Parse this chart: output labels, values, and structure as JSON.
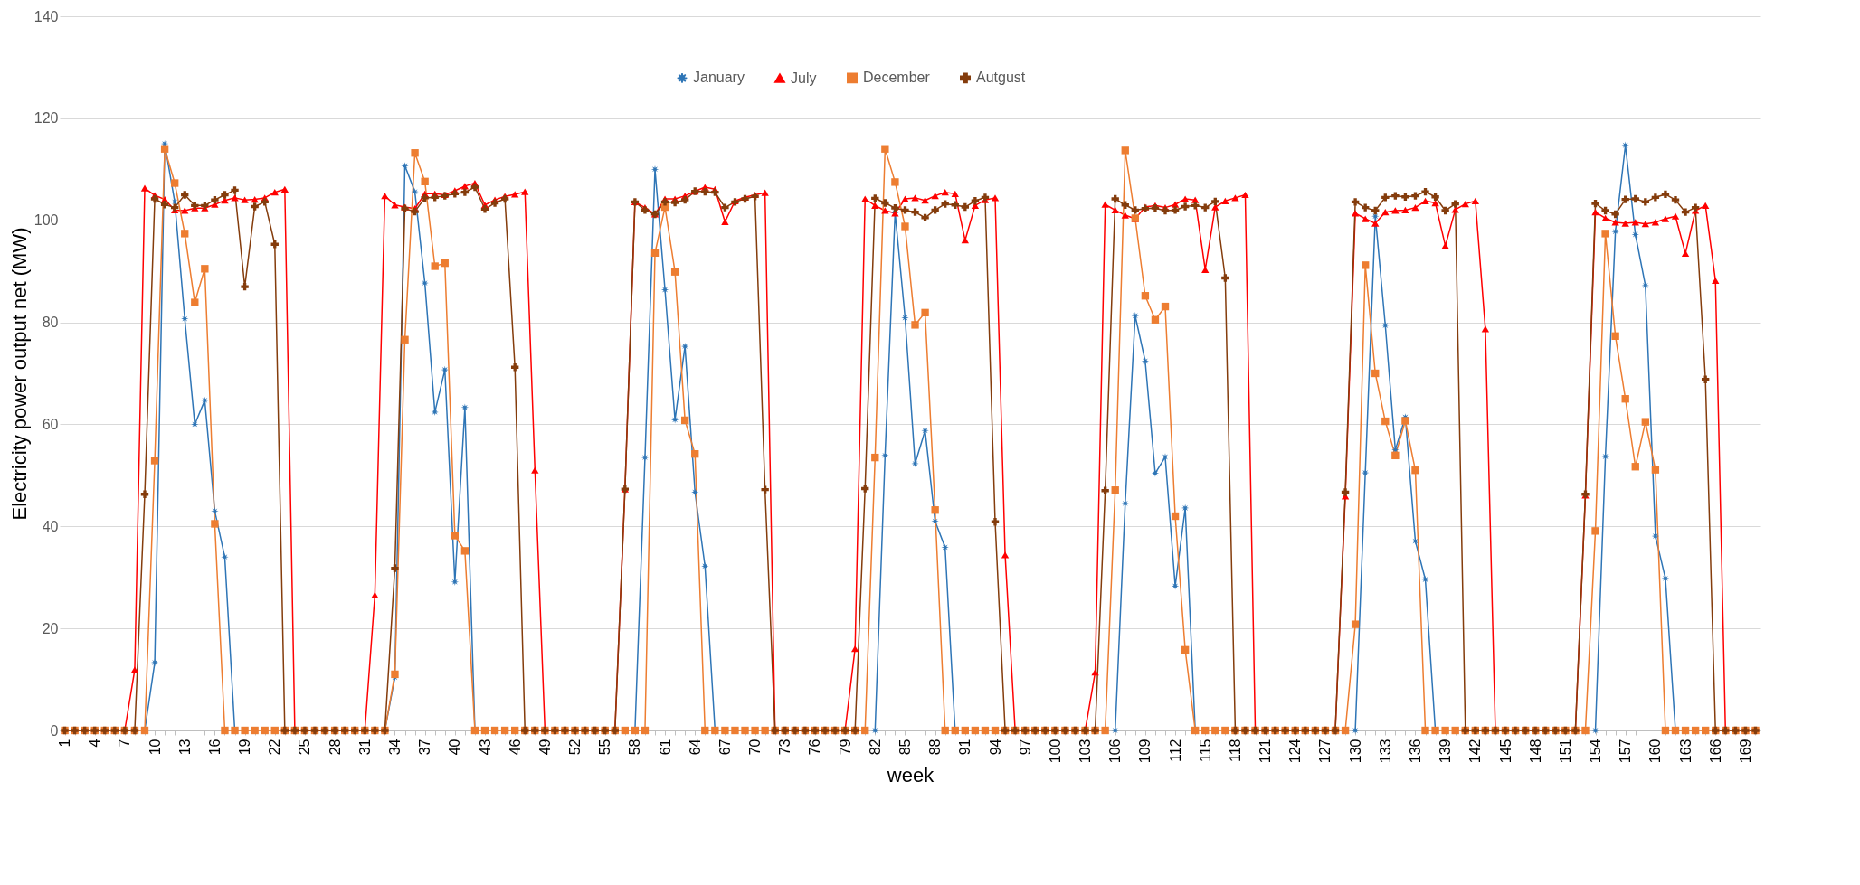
{
  "chart_data": {
    "type": "line",
    "xlabel": "week",
    "ylabel": "Electricity power output net (MW)",
    "categories": [
      "1",
      null,
      null,
      "4",
      null,
      null,
      "7",
      null,
      null,
      "10",
      null,
      null,
      "13",
      null,
      null,
      "16",
      null,
      null,
      "19",
      null,
      null,
      "22",
      null,
      null,
      "25",
      null,
      null,
      "28",
      null,
      null,
      "31",
      null,
      null,
      "34",
      null,
      null,
      "37",
      null,
      null,
      "40",
      null,
      null,
      "43",
      null,
      null,
      "46",
      null,
      null,
      "49",
      null,
      null,
      "52",
      null,
      null,
      "55",
      null,
      null,
      "58",
      null,
      null,
      "61",
      null,
      null,
      "64",
      null,
      null,
      "67",
      null,
      null,
      "70",
      null,
      null,
      "73",
      null,
      null,
      "76",
      null,
      null,
      "79",
      null,
      null,
      "82",
      null,
      null,
      "85",
      null,
      null,
      "88",
      null,
      null,
      "91",
      null,
      null,
      "94",
      null,
      null,
      "97",
      null,
      null,
      "100",
      null,
      null,
      "103",
      null,
      null,
      "106",
      null,
      null,
      "109",
      null,
      null,
      "112",
      null,
      null,
      "115",
      null,
      null,
      "118",
      null,
      null,
      "121",
      null,
      null,
      "124",
      null,
      null,
      "127",
      null,
      null,
      "130",
      null,
      null,
      "133",
      null,
      null,
      "136",
      null,
      null,
      "139",
      null,
      null,
      "142",
      null,
      null,
      "145",
      null,
      null,
      "148",
      null,
      null,
      "151",
      null,
      null,
      "154",
      null,
      null,
      "157",
      null,
      null,
      "160",
      null,
      null,
      "163",
      null,
      null,
      "166",
      null,
      null,
      "169",
      null
    ],
    "ylim": [
      0,
      140
    ],
    "yticks": [
      0,
      20,
      40,
      60,
      80,
      100,
      120,
      140
    ],
    "grid": "y",
    "legend": "top",
    "series": [
      {
        "name": "January",
        "color": "#2e75b6",
        "marker": "star",
        "values": [
          null,
          null,
          null,
          null,
          null,
          null,
          null,
          null,
          0,
          13.3,
          115,
          103.6,
          80.7,
          60,
          64.7,
          43,
          34,
          0,
          null,
          null,
          null,
          null,
          null,
          null,
          null,
          null,
          null,
          null,
          null,
          null,
          null,
          null,
          0,
          10.4,
          110.7,
          105.6,
          87.7,
          62.4,
          70.7,
          29.1,
          63.3,
          0,
          null,
          null,
          null,
          null,
          null,
          null,
          null,
          null,
          null,
          null,
          null,
          null,
          null,
          null,
          null,
          0,
          53.5,
          110,
          86.4,
          60.9,
          75.3,
          46.7,
          32.2,
          0,
          null,
          null,
          null,
          null,
          null,
          null,
          null,
          null,
          null,
          null,
          null,
          null,
          null,
          null,
          null,
          0,
          53.9,
          101.5,
          80.9,
          52.3,
          58.8,
          41,
          35.9,
          0,
          null,
          null,
          null,
          null,
          null,
          null,
          null,
          null,
          null,
          null,
          null,
          null,
          null,
          null,
          null,
          0,
          44.5,
          81.3,
          72.4,
          50.4,
          53.6,
          28.3,
          43.6,
          0,
          null,
          null,
          null,
          null,
          null,
          null,
          null,
          null,
          null,
          null,
          null,
          null,
          null,
          null,
          null,
          0,
          50.5,
          100.8,
          79.4,
          55,
          61.4,
          37.1,
          29.6,
          0,
          null,
          null,
          null,
          null,
          null,
          null,
          null,
          null,
          null,
          null,
          null,
          null,
          null,
          null,
          null,
          0,
          53.7,
          97.8,
          114.7,
          97.2,
          87.2,
          38.1,
          29.8,
          0,
          null,
          null,
          null,
          null,
          null,
          null,
          null,
          null
        ]
      },
      {
        "name": "July",
        "color": "#ff0000",
        "marker": "triangle",
        "values": [
          0,
          0,
          0,
          0,
          0,
          0,
          0,
          11.9,
          106.3,
          104.9,
          104.1,
          102,
          101.9,
          102.4,
          102.4,
          103.1,
          103.9,
          104.4,
          104,
          104.1,
          104.4,
          105.5,
          106.1,
          0,
          0,
          0,
          0,
          0,
          0,
          0,
          0,
          26.5,
          104.8,
          103,
          102.6,
          102.3,
          105.2,
          105.2,
          105,
          105.8,
          106.7,
          107.3,
          103,
          104,
          104.7,
          105.1,
          105.6,
          51,
          0,
          0,
          0,
          0,
          0,
          0,
          0,
          0,
          47.3,
          103.6,
          102.5,
          101.2,
          104.2,
          104.2,
          104.8,
          105.7,
          106.5,
          106.1,
          99.7,
          103.8,
          104.5,
          105,
          105.4,
          0,
          0,
          0,
          0,
          0,
          0,
          0,
          0,
          16,
          104.2,
          102.9,
          101.9,
          101.4,
          104.2,
          104.4,
          103.9,
          104.8,
          105.5,
          105.2,
          96.1,
          102.9,
          104,
          104.4,
          34.4,
          0,
          0,
          0,
          0,
          0,
          0,
          0,
          0,
          11.4,
          103.1,
          102,
          101,
          100.3,
          102.6,
          102.9,
          102.5,
          103.1,
          104.2,
          104,
          90.3,
          102.6,
          103.8,
          104.4,
          105,
          0,
          0,
          0,
          0,
          0,
          0,
          0,
          0,
          0,
          45.9,
          101.4,
          100.3,
          99.4,
          101.6,
          101.9,
          102,
          102.5,
          103.8,
          103.4,
          95,
          102.1,
          103.2,
          103.8,
          78.7,
          0,
          0,
          0,
          0,
          0,
          0,
          0,
          0,
          0,
          46.1,
          101.6,
          100.4,
          99.6,
          99.4,
          99.6,
          99.3,
          99.6,
          100.3,
          100.8,
          93.5,
          101.9,
          102.9,
          88.2,
          0,
          0,
          0,
          0
        ]
      },
      {
        "name": "December",
        "color": "#ed7d31",
        "marker": "square",
        "values": [
          0,
          0,
          0,
          0,
          0,
          0,
          0,
          0,
          0,
          52.9,
          114,
          107.3,
          97.4,
          83.9,
          90.5,
          40.5,
          0,
          0,
          0,
          0,
          0,
          0,
          0,
          0,
          0,
          0,
          0,
          0,
          0,
          0,
          0,
          0,
          0,
          11,
          76.6,
          113.2,
          107.6,
          91,
          91.6,
          38.2,
          35.2,
          0,
          0,
          0,
          0,
          0,
          0,
          0,
          0,
          0,
          0,
          0,
          0,
          0,
          0,
          0,
          0,
          0,
          0,
          93.6,
          102.6,
          89.9,
          60.8,
          54.2,
          0,
          0,
          0,
          0,
          0,
          0,
          0,
          0,
          0,
          0,
          0,
          0,
          0,
          0,
          0,
          0,
          0,
          53.5,
          114,
          107.5,
          98.8,
          79.5,
          81.9,
          43.2,
          0,
          0,
          0,
          0,
          0,
          0,
          0,
          0,
          0,
          0,
          0,
          0,
          0,
          0,
          0,
          0,
          0,
          47.1,
          113.7,
          100.4,
          85.2,
          80.5,
          83.1,
          42,
          15.8,
          0,
          0,
          0,
          0,
          0,
          0,
          0,
          0,
          0,
          0,
          0,
          0,
          0,
          0,
          0,
          0,
          20.8,
          91.2,
          70,
          60.6,
          53.9,
          60.7,
          51,
          0,
          0,
          0,
          0,
          0,
          0,
          0,
          0,
          0,
          0,
          0,
          0,
          0,
          0,
          0,
          0,
          0,
          39.1,
          97.4,
          77.3,
          65,
          51.7,
          60.5,
          51.1,
          0,
          0,
          0,
          0,
          0,
          0,
          0,
          0,
          0,
          0
        ]
      },
      {
        "name": "Autgust",
        "color": "#843c0c",
        "marker": "cross",
        "values": [
          0,
          0,
          0,
          0,
          0,
          0,
          0,
          0,
          46.3,
          104.2,
          103.1,
          102.5,
          105,
          102.9,
          102.9,
          104,
          105,
          105.9,
          87,
          102.7,
          103.6,
          95.3,
          0,
          0,
          0,
          0,
          0,
          0,
          0,
          0,
          0,
          0,
          0,
          31.8,
          102.3,
          101.7,
          104.4,
          104.5,
          104.8,
          105.2,
          105.5,
          106.5,
          102.2,
          103.4,
          104.2,
          71.2,
          0,
          0,
          0,
          0,
          0,
          0,
          0,
          0,
          0,
          0,
          47.3,
          103.6,
          102,
          101.2,
          103.6,
          103.5,
          104,
          105.7,
          105.6,
          105.5,
          102.5,
          103.6,
          104.2,
          104.7,
          47.2,
          0,
          0,
          0,
          0,
          0,
          0,
          0,
          0,
          0,
          47.4,
          104.3,
          103.4,
          102.4,
          102,
          101.6,
          100.5,
          102,
          103.2,
          103,
          102.6,
          103.8,
          104.5,
          40.9,
          0,
          0,
          0,
          0,
          0,
          0,
          0,
          0,
          0,
          0,
          47,
          104.2,
          103,
          102,
          102.3,
          102.4,
          101.9,
          102,
          102.7,
          102.9,
          102.5,
          103.7,
          88.7,
          0,
          0,
          0,
          0,
          0,
          0,
          0,
          0,
          0,
          0,
          0,
          46.7,
          103.6,
          102.5,
          101.9,
          104.5,
          104.8,
          104.6,
          104.8,
          105.6,
          104.6,
          101.9,
          103.2,
          0,
          0,
          0,
          0,
          0,
          0,
          0,
          0,
          0,
          0,
          0,
          0,
          46.3,
          103.3,
          101.9,
          101.2,
          104.1,
          104.2,
          103.6,
          104.5,
          105.1,
          104,
          101.6,
          102.5,
          68.8,
          0,
          0,
          0,
          0,
          0
        ]
      }
    ]
  }
}
